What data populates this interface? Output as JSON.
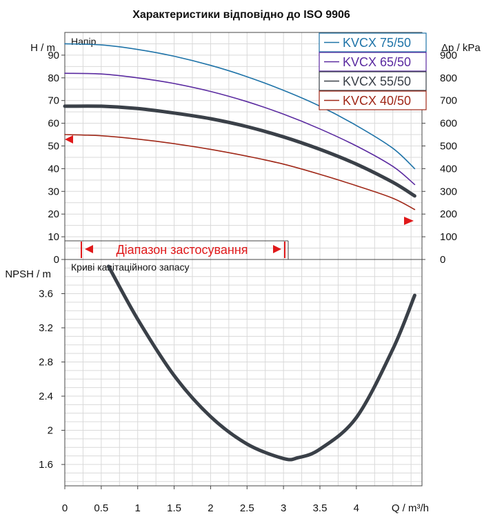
{
  "title": "Характеристики відповідно до ISO 9906",
  "chart_data": [
    {
      "type": "line",
      "panel_label": "Напір",
      "ylabel_left": "H / m",
      "ylabel_right": "Δp / kPa",
      "xlim": [
        0,
        4.9
      ],
      "ylim": [
        0,
        100
      ],
      "ylim_right": [
        0,
        1000
      ],
      "yticks_left": [
        "0",
        "10",
        "20",
        "30",
        "40",
        "50",
        "60",
        "70",
        "80",
        "90"
      ],
      "yticks_right": [
        "0",
        "100",
        "200",
        "300",
        "400",
        "500",
        "600",
        "700",
        "800",
        "900"
      ],
      "grid": true,
      "legend_position": "top-right",
      "series": [
        {
          "name": "KVCX 75/50",
          "color": "#1e73a8",
          "x": [
            0,
            0.5,
            1,
            1.5,
            2,
            2.5,
            3,
            3.5,
            4,
            4.5,
            4.8
          ],
          "y": [
            95,
            94.5,
            92.5,
            89.5,
            85.5,
            80.5,
            74.5,
            67.5,
            59,
            49,
            40
          ]
        },
        {
          "name": "KVCX 65/50",
          "color": "#5a2aa0",
          "x": [
            0,
            0.5,
            1,
            1.5,
            2,
            2.5,
            3,
            3.5,
            4,
            4.5,
            4.8
          ],
          "y": [
            82,
            81.7,
            80,
            77.5,
            74,
            69.5,
            64,
            57.5,
            50,
            41,
            33
          ]
        },
        {
          "name": "KVCX 55/50",
          "color": "#3a4048",
          "x": [
            0,
            0.5,
            1,
            1.5,
            2,
            2.5,
            3,
            3.5,
            4,
            4.5,
            4.8
          ],
          "y": [
            67.5,
            67.5,
            66.5,
            64.5,
            62,
            58.5,
            54,
            48.5,
            42,
            34,
            28
          ]
        },
        {
          "name": "KVCX 40/50",
          "color": "#a02818",
          "x": [
            0,
            0.5,
            1,
            1.5,
            2,
            2.5,
            3,
            3.5,
            4,
            4.5,
            4.8
          ],
          "y": [
            55,
            54.5,
            53,
            51,
            48.5,
            45.5,
            42,
            37.5,
            32.5,
            27,
            22
          ]
        }
      ],
      "range_label": "Діапазон застосування",
      "range_x": [
        0.25,
        3.05
      ]
    },
    {
      "type": "line",
      "panel_label": "Криві кавітаційного запасу",
      "ylabel": "NPSH / m",
      "xlabel": "Q / m³/h",
      "xlim": [
        0,
        4.9
      ],
      "ylim": [
        1.35,
        4.0
      ],
      "xticks": [
        "0",
        "0.5",
        "1",
        "1.5",
        "2",
        "2.5",
        "3",
        "3.5",
        "4",
        "Q / m³/h"
      ],
      "yticks": [
        "1.6",
        "2",
        "2.4",
        "2.8",
        "3.2",
        "3.6"
      ],
      "grid": true,
      "series": [
        {
          "color": "#3a4048",
          "x": [
            0.6,
            1.0,
            1.5,
            2.0,
            2.5,
            3.0,
            3.2,
            3.5,
            4.0,
            4.5,
            4.8
          ],
          "y": [
            3.92,
            3.3,
            2.64,
            2.16,
            1.84,
            1.67,
            1.68,
            1.78,
            2.15,
            2.95,
            3.58
          ]
        }
      ]
    }
  ]
}
